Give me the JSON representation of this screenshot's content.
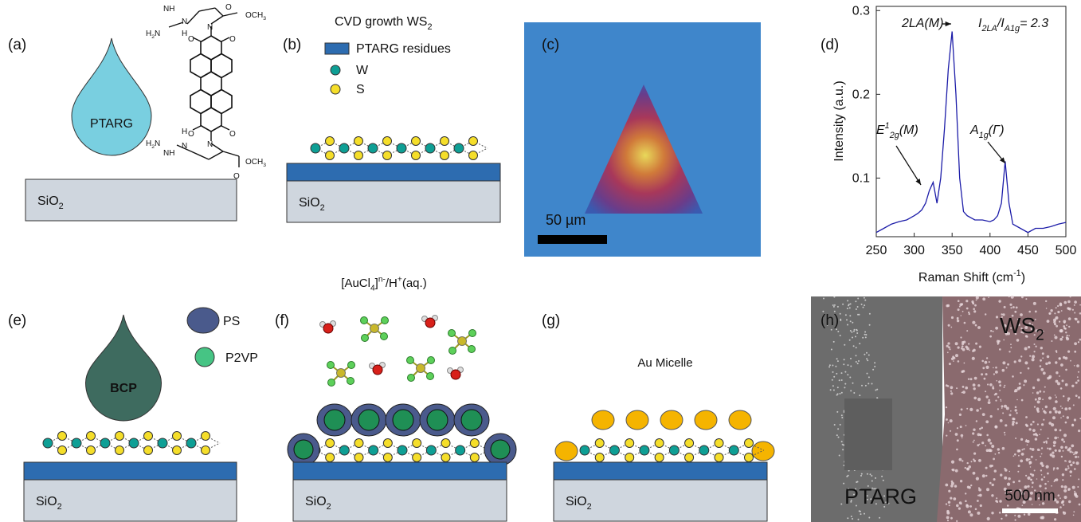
{
  "panels": {
    "a": {
      "label": "(a)",
      "drop": "PTARG",
      "substrate": [
        "SiO",
        {
          "sub": "2"
        }
      ],
      "molecule": [
        [
          "NH"
        ],
        [
          "H",
          {
            "sub": "2"
          },
          "N"
        ],
        [
          "N"
        ],
        [
          "H"
        ],
        [
          "O"
        ],
        [
          "OCH",
          {
            "sub": "3"
          }
        ],
        [
          "N"
        ],
        [
          "O"
        ],
        [
          "O"
        ],
        [
          "N"
        ],
        [
          "O"
        ],
        [
          "O"
        ],
        [
          "NH"
        ],
        [
          "H",
          {
            "sub": "2"
          },
          "N"
        ],
        [
          "H"
        ],
        [
          "N"
        ],
        [
          "O"
        ],
        [
          "OCH",
          {
            "sub": "3"
          }
        ]
      ]
    },
    "b": {
      "label": "(b)",
      "title": [
        "CVD growth WS",
        {
          "sub": "2"
        }
      ],
      "legend": [
        "PTARG residues",
        "W",
        "S"
      ],
      "substrate": [
        "SiO",
        {
          "sub": "2"
        }
      ]
    },
    "c": {
      "label": "(c)",
      "scale_bar": "50 µm"
    },
    "d": {
      "label": "(d)"
    },
    "e": {
      "label": "(e)",
      "drop": "BCP",
      "legend": [
        "PS",
        "P2VP"
      ],
      "substrate": [
        "SiO",
        {
          "sub": "2"
        }
      ]
    },
    "f": {
      "label": "(f)",
      "title": [
        "[AuCl",
        {
          "sub": "4"
        },
        "]",
        {
          "sup": "n-"
        },
        "/H",
        {
          "sup": "+"
        },
        "(aq.)"
      ],
      "substrate": [
        "SiO",
        {
          "sub": "2"
        }
      ]
    },
    "g": {
      "label": "(g)",
      "title": "Au Micelle",
      "substrate": [
        "SiO",
        {
          "sub": "2"
        }
      ]
    },
    "h": {
      "label": "(h)",
      "region_right": [
        "WS",
        {
          "sub": "2"
        }
      ],
      "region_left": "PTARG",
      "scale_bar": "500 nm"
    }
  },
  "chart_data": {
    "type": "line",
    "x": [
      250,
      260,
      270,
      280,
      290,
      300,
      305,
      310,
      315,
      320,
      325,
      330,
      335,
      340,
      345,
      350,
      355,
      360,
      365,
      370,
      380,
      390,
      400,
      405,
      410,
      415,
      420,
      425,
      430,
      440,
      450,
      460,
      470,
      480,
      490,
      500
    ],
    "series": [
      {
        "color": "#1c1ca8",
        "values": [
          0.035,
          0.04,
          0.045,
          0.048,
          0.05,
          0.055,
          0.058,
          0.062,
          0.07,
          0.085,
          0.095,
          0.07,
          0.1,
          0.16,
          0.23,
          0.275,
          0.2,
          0.1,
          0.06,
          0.055,
          0.05,
          0.05,
          0.048,
          0.05,
          0.055,
          0.07,
          0.12,
          0.07,
          0.045,
          0.04,
          0.035,
          0.04,
          0.04,
          0.042,
          0.045,
          0.047
        ]
      }
    ],
    "xlim": [
      250,
      500
    ],
    "xticks": [
      250,
      300,
      350,
      400,
      450,
      500
    ],
    "ylim": [
      0.03,
      0.305
    ],
    "yticks": [
      0.1,
      0.2,
      0.3
    ],
    "xlabel": [
      "Raman Shift (cm",
      {
        "sup": "-1"
      },
      ")"
    ],
    "ylabel": "Intensity (a.u.)",
    "annotations": [
      [
        "2LA(M)"
      ],
      [
        "I",
        {
          "sub": "2LA"
        },
        "/I",
        {
          "sub": "A1g"
        },
        "= 2.3"
      ],
      [
        "E",
        {
          "sup": "1"
        },
        {
          "sub": "2g"
        },
        "(M)"
      ],
      [
        "A",
        {
          "sub": "1g"
        },
        "(Γ)"
      ]
    ]
  }
}
